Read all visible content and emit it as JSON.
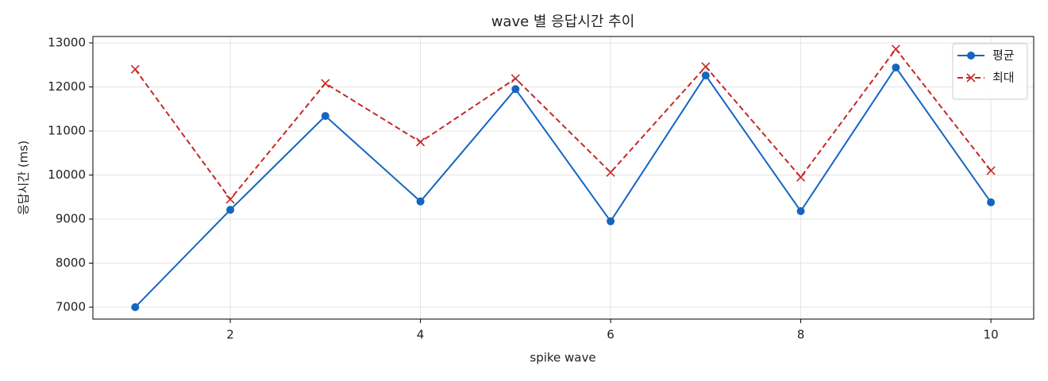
{
  "chart_data": {
    "type": "line",
    "title": "wave 별 응답시간 추이",
    "x_label": "spike wave",
    "y_label": "응답시간 (ms)",
    "x": [
      1,
      2,
      3,
      4,
      5,
      6,
      7,
      8,
      9,
      10
    ],
    "series": [
      {
        "name": "평균",
        "color": "#1565c0",
        "marker": "circle",
        "linestyle": "solid",
        "values": [
          7000,
          9210,
          11340,
          9400,
          11950,
          8950,
          12260,
          9180,
          12440,
          9380
        ]
      },
      {
        "name": "최대",
        "color": "#c62828",
        "marker": "x",
        "linestyle": "dashed",
        "values": [
          12400,
          9450,
          12080,
          10750,
          12190,
          10060,
          12460,
          9950,
          12860,
          10100
        ]
      }
    ],
    "xlim": [
      0.555,
      10.45
    ],
    "ylim": [
      6730,
      13144
    ],
    "xticks": [
      2,
      4,
      6,
      8,
      10
    ],
    "yticks": [
      7000,
      8000,
      9000,
      10000,
      11000,
      12000,
      13000
    ],
    "grid": true,
    "legend": "upper-right"
  }
}
